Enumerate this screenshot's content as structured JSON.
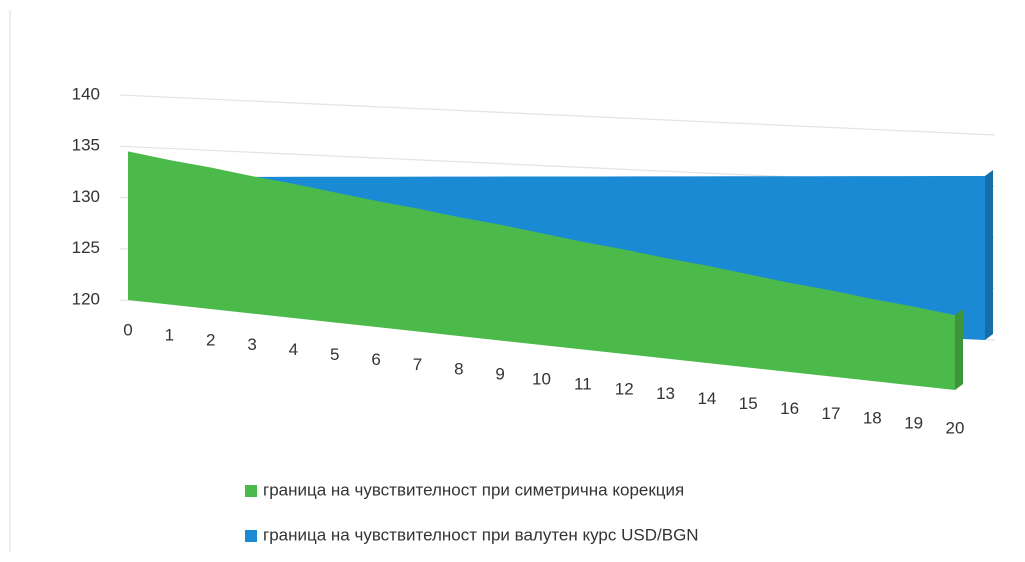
{
  "chart_data": {
    "type": "area",
    "categories": [
      "0",
      "1",
      "2",
      "3",
      "4",
      "5",
      "6",
      "7",
      "8",
      "9",
      "10",
      "11",
      "12",
      "13",
      "14",
      "15",
      "16",
      "17",
      "18",
      "19",
      "20"
    ],
    "series": [
      {
        "name": "граница на чувствителност при симетрична корекция",
        "color": "#4cba4a",
        "values": [
          134.5,
          134.1,
          133.8,
          133.4,
          133.1,
          132.7,
          132.3,
          132.0,
          131.6,
          131.3,
          130.9,
          130.5,
          130.2,
          129.8,
          129.5,
          129.1,
          128.7,
          128.4,
          128.0,
          127.7,
          127.3
        ]
      },
      {
        "name": "граница на чувствителност при валутен курс USD/BGN",
        "color": "#1a8ad4",
        "values": [
          132.0,
          132.2,
          132.4,
          132.6,
          132.8,
          133.0,
          133.2,
          133.4,
          133.6,
          133.8,
          134.0,
          134.2,
          134.4,
          134.6,
          134.8,
          135.0,
          135.2,
          135.4,
          135.6,
          135.8,
          136.0
        ]
      }
    ],
    "ylim": [
      120,
      140
    ],
    "yticks": [
      120,
      125,
      130,
      135,
      140
    ],
    "grid": true
  }
}
